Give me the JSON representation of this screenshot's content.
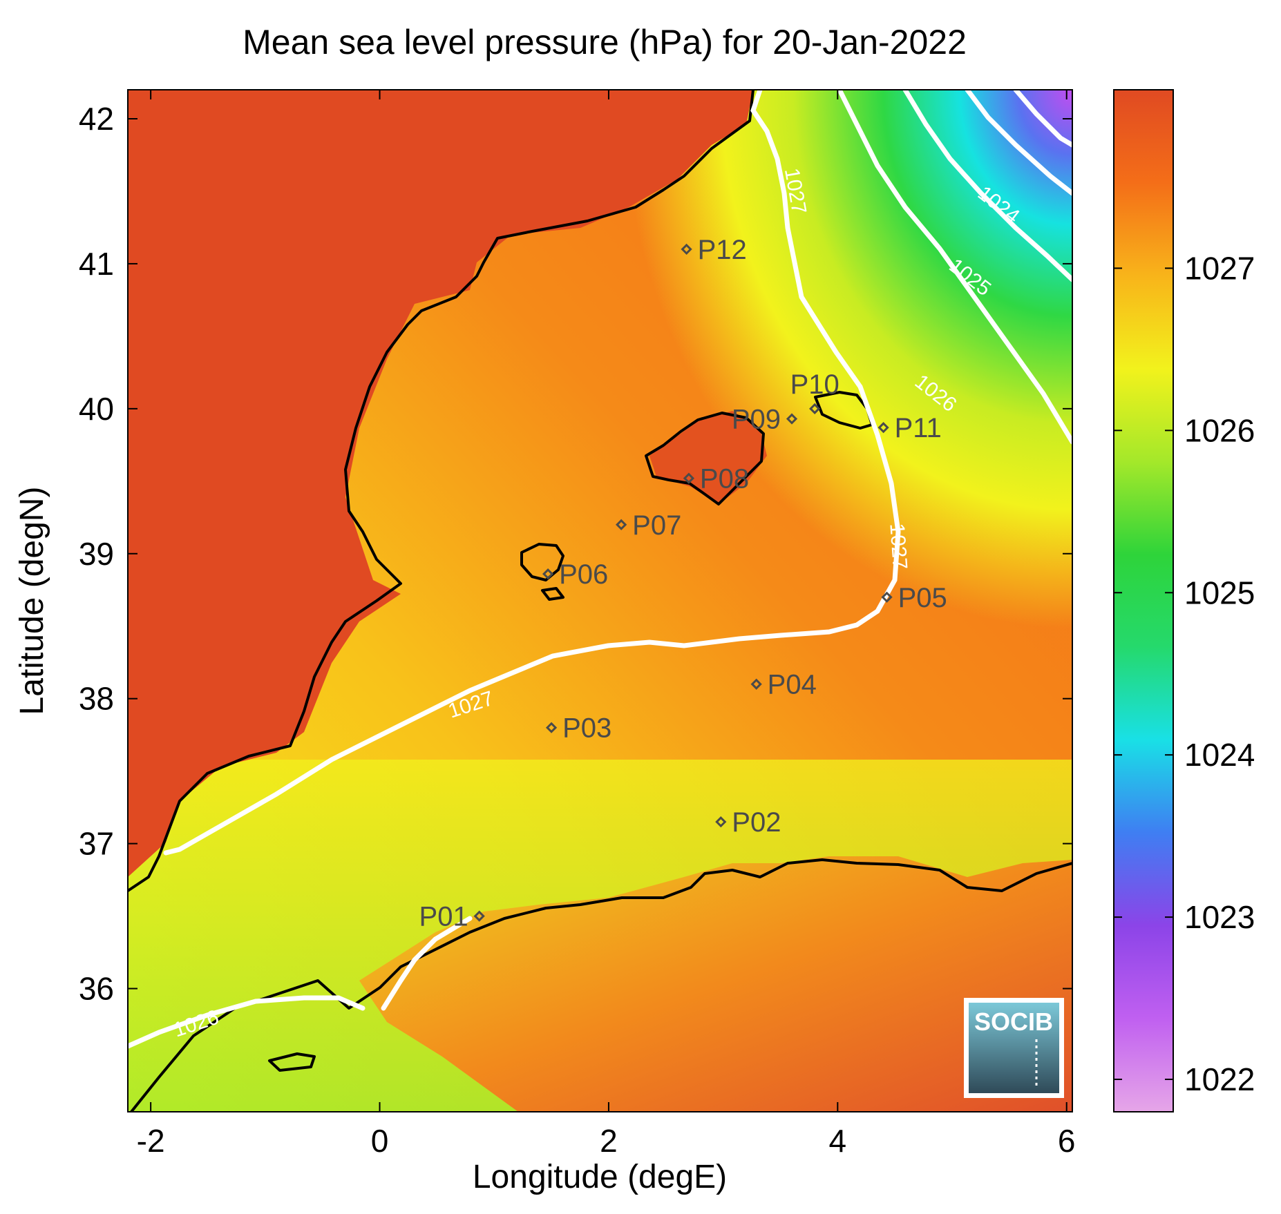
{
  "title": "Mean sea level pressure (hPa) for 20-Jan-2022",
  "x_axis": {
    "label": "Longitude (degE)",
    "range": [
      -2.2,
      6.05
    ],
    "ticks": [
      {
        "value": -2,
        "label": "-2"
      },
      {
        "value": 0,
        "label": "0"
      },
      {
        "value": 2,
        "label": "2"
      },
      {
        "value": 4,
        "label": "4"
      },
      {
        "value": 6,
        "label": "6"
      }
    ]
  },
  "y_axis": {
    "label": "Latitude (degN)",
    "range": [
      35.15,
      42.2
    ],
    "ticks": [
      {
        "value": 42,
        "label": "42"
      },
      {
        "value": 41,
        "label": "41"
      },
      {
        "value": 40,
        "label": "40"
      },
      {
        "value": 39,
        "label": "39"
      },
      {
        "value": 38,
        "label": "38"
      },
      {
        "value": 37,
        "label": "37"
      },
      {
        "value": 36,
        "label": "36"
      }
    ]
  },
  "colorbar": {
    "range": [
      1021.8,
      1028.1
    ],
    "ticks": [
      {
        "value": 1027,
        "label": "1027"
      },
      {
        "value": 1026,
        "label": "1026"
      },
      {
        "value": 1025,
        "label": "1025"
      },
      {
        "value": 1024,
        "label": "1024"
      },
      {
        "value": 1023,
        "label": "1023"
      },
      {
        "value": 1022,
        "label": "1022"
      }
    ],
    "colors": [
      "#e6a6e8",
      "#c060f0",
      "#8c44e8",
      "#3f7ef2",
      "#19e0e6",
      "#25d96c",
      "#2ed43a",
      "#a4e82a",
      "#f2f21c",
      "#f8b41a",
      "#f46e18",
      "#e04a22"
    ]
  },
  "contour_labels": [
    {
      "text": "1027",
      "lon": 3.62,
      "lat": 41.5,
      "angle": 80
    },
    {
      "text": "1024",
      "lon": 5.4,
      "lat": 41.4,
      "angle": 38
    },
    {
      "text": "1025",
      "lon": 5.15,
      "lat": 40.9,
      "angle": 38
    },
    {
      "text": "1026",
      "lon": 4.85,
      "lat": 40.1,
      "angle": 38
    },
    {
      "text": "1027",
      "lon": 4.52,
      "lat": 39.05,
      "angle": 86
    },
    {
      "text": "1027",
      "lon": 0.8,
      "lat": 37.95,
      "angle": -18
    },
    {
      "text": "1026",
      "lon": -1.6,
      "lat": 35.75,
      "angle": -18
    }
  ],
  "stations": [
    {
      "name": "P01",
      "lon": 0.87,
      "lat": 36.5,
      "label_side": "left"
    },
    {
      "name": "P02",
      "lon": 2.98,
      "lat": 37.15,
      "label_side": "right"
    },
    {
      "name": "P03",
      "lon": 1.5,
      "lat": 37.8,
      "label_side": "right"
    },
    {
      "name": "P04",
      "lon": 3.29,
      "lat": 38.1,
      "label_side": "right"
    },
    {
      "name": "P05",
      "lon": 4.43,
      "lat": 38.7,
      "label_side": "right"
    },
    {
      "name": "P06",
      "lon": 1.47,
      "lat": 38.86,
      "label_side": "right"
    },
    {
      "name": "P07",
      "lon": 2.11,
      "lat": 39.2,
      "label_side": "right"
    },
    {
      "name": "P08",
      "lon": 2.7,
      "lat": 39.52,
      "label_side": "right"
    },
    {
      "name": "P09",
      "lon": 3.6,
      "lat": 39.93,
      "label_side": "left"
    },
    {
      "name": "P10",
      "lon": 3.8,
      "lat": 40.0,
      "label_side": "above"
    },
    {
      "name": "P11",
      "lon": 4.4,
      "lat": 39.87,
      "label_side": "right"
    },
    {
      "name": "P12",
      "lon": 2.68,
      "lat": 41.1,
      "label_side": "right"
    }
  ],
  "logo": {
    "text": "SOCIB"
  }
}
